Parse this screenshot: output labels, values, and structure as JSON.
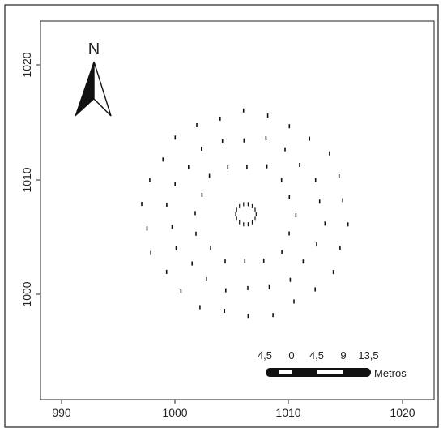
{
  "map": {
    "north_label": "N",
    "x_ticks": [
      "990",
      "1000",
      "1010",
      "1020"
    ],
    "y_ticks": [
      "1000",
      "1010",
      "1020"
    ],
    "x_domain": [
      989,
      1024
    ],
    "y_domain": [
      990.5,
      1024
    ],
    "scale_bar": {
      "labels": [
        "4,5",
        "0",
        "4,5",
        "9",
        "13,5"
      ],
      "unit": "Metros"
    }
  },
  "chart_data": {
    "type": "scatter",
    "xlim": [
      989,
      1024
    ],
    "ylim": [
      990.5,
      1024
    ],
    "xticks": [
      990,
      1000,
      1010,
      1020
    ],
    "yticks": [
      1000,
      1010,
      1020
    ],
    "marker": "short-vertical-dash",
    "rings": [
      {
        "cx": 1006.2,
        "cy": 1007.0,
        "r": 0.9,
        "n": 14
      },
      {
        "cx": 1006.2,
        "cy": 1007.0,
        "r": 4.4,
        "n": 16
      },
      {
        "cx": 1006.2,
        "cy": 1007.0,
        "r": 6.7,
        "n": 22
      },
      {
        "cx": 1006.2,
        "cy": 1007.0,
        "r": 8.9,
        "n": 26
      }
    ],
    "grid": false
  }
}
